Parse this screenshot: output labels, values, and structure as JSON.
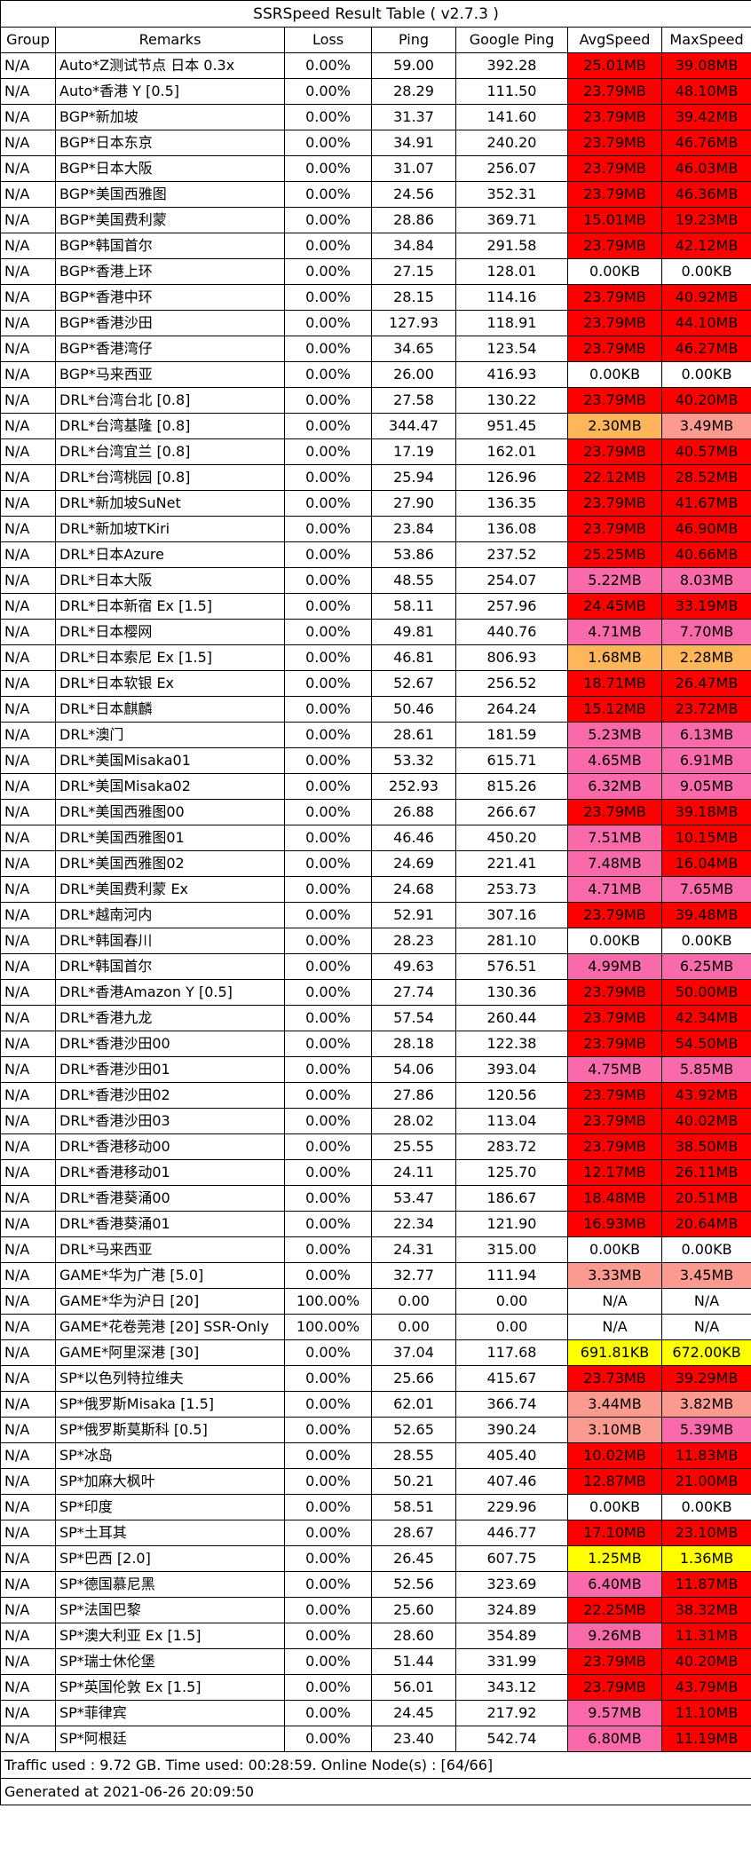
{
  "title": "SSRSpeed Result Table ( v2.7.3 )",
  "headers": [
    "Group",
    "Remarks",
    "Loss",
    "Ping",
    "Google Ping",
    "AvgSpeed",
    "MaxSpeed"
  ],
  "colors": {
    "red": "#ff0000",
    "pink": "#f86aa9",
    "salmon": "#fb9a8e",
    "orange": "#ffb65a",
    "yellow": "#ffff00",
    "white": "#ffffff"
  },
  "rows": [
    [
      "N/A",
      "Auto*Z测试节点 日本 0.3x",
      "0.00%",
      "59.00",
      "392.28",
      "25.01MB",
      "39.08MB",
      "red",
      "red"
    ],
    [
      "N/A",
      "Auto*香港 Y [0.5]",
      "0.00%",
      "28.29",
      "111.50",
      "23.79MB",
      "48.10MB",
      "red",
      "red"
    ],
    [
      "N/A",
      "BGP*新加坡",
      "0.00%",
      "31.37",
      "141.60",
      "23.79MB",
      "39.42MB",
      "red",
      "red"
    ],
    [
      "N/A",
      "BGP*日本东京",
      "0.00%",
      "34.91",
      "240.20",
      "23.79MB",
      "46.76MB",
      "red",
      "red"
    ],
    [
      "N/A",
      "BGP*日本大阪",
      "0.00%",
      "31.07",
      "256.07",
      "23.79MB",
      "46.03MB",
      "red",
      "red"
    ],
    [
      "N/A",
      "BGP*美国西雅图",
      "0.00%",
      "24.56",
      "352.31",
      "23.79MB",
      "46.36MB",
      "red",
      "red"
    ],
    [
      "N/A",
      "BGP*美国费利蒙",
      "0.00%",
      "28.86",
      "369.71",
      "15.01MB",
      "19.23MB",
      "red",
      "red"
    ],
    [
      "N/A",
      "BGP*韩国首尔",
      "0.00%",
      "34.84",
      "291.58",
      "23.79MB",
      "42.12MB",
      "red",
      "red"
    ],
    [
      "N/A",
      "BGP*香港上环",
      "0.00%",
      "27.15",
      "128.01",
      "0.00KB",
      "0.00KB",
      "white",
      "white"
    ],
    [
      "N/A",
      "BGP*香港中环",
      "0.00%",
      "28.15",
      "114.16",
      "23.79MB",
      "40.92MB",
      "red",
      "red"
    ],
    [
      "N/A",
      "BGP*香港沙田",
      "0.00%",
      "127.93",
      "118.91",
      "23.79MB",
      "44.10MB",
      "red",
      "red"
    ],
    [
      "N/A",
      "BGP*香港湾仔",
      "0.00%",
      "34.65",
      "123.54",
      "23.79MB",
      "46.27MB",
      "red",
      "red"
    ],
    [
      "N/A",
      "BGP*马来西亚",
      "0.00%",
      "26.00",
      "416.93",
      "0.00KB",
      "0.00KB",
      "white",
      "white"
    ],
    [
      "N/A",
      "DRL*台湾台北 [0.8]",
      "0.00%",
      "27.58",
      "130.22",
      "23.79MB",
      "40.20MB",
      "red",
      "red"
    ],
    [
      "N/A",
      "DRL*台湾基隆 [0.8]",
      "0.00%",
      "344.47",
      "951.45",
      "2.30MB",
      "3.49MB",
      "orange",
      "salmon"
    ],
    [
      "N/A",
      "DRL*台湾宜兰 [0.8]",
      "0.00%",
      "17.19",
      "162.01",
      "23.79MB",
      "40.57MB",
      "red",
      "red"
    ],
    [
      "N/A",
      "DRL*台湾桃园 [0.8]",
      "0.00%",
      "25.94",
      "126.96",
      "22.12MB",
      "28.52MB",
      "red",
      "red"
    ],
    [
      "N/A",
      "DRL*新加坡SuNet",
      "0.00%",
      "27.90",
      "136.35",
      "23.79MB",
      "41.67MB",
      "red",
      "red"
    ],
    [
      "N/A",
      "DRL*新加坡TKiri",
      "0.00%",
      "23.84",
      "136.08",
      "23.79MB",
      "46.90MB",
      "red",
      "red"
    ],
    [
      "N/A",
      "DRL*日本Azure",
      "0.00%",
      "53.86",
      "237.52",
      "25.25MB",
      "40.66MB",
      "red",
      "red"
    ],
    [
      "N/A",
      "DRL*日本大阪",
      "0.00%",
      "48.55",
      "254.07",
      "5.22MB",
      "8.03MB",
      "pink",
      "pink"
    ],
    [
      "N/A",
      "DRL*日本新宿 Ex [1.5]",
      "0.00%",
      "58.11",
      "257.96",
      "24.45MB",
      "33.19MB",
      "red",
      "red"
    ],
    [
      "N/A",
      "DRL*日本樱网",
      "0.00%",
      "49.81",
      "440.76",
      "4.71MB",
      "7.70MB",
      "pink",
      "pink"
    ],
    [
      "N/A",
      "DRL*日本索尼 Ex [1.5]",
      "0.00%",
      "46.81",
      "806.93",
      "1.68MB",
      "2.28MB",
      "orange",
      "orange"
    ],
    [
      "N/A",
      "DRL*日本软银 Ex",
      "0.00%",
      "52.67",
      "256.52",
      "18.71MB",
      "26.47MB",
      "red",
      "red"
    ],
    [
      "N/A",
      "DRL*日本麒麟",
      "0.00%",
      "50.46",
      "264.24",
      "15.12MB",
      "23.72MB",
      "red",
      "red"
    ],
    [
      "N/A",
      "DRL*澳门",
      "0.00%",
      "28.61",
      "181.59",
      "5.23MB",
      "6.13MB",
      "pink",
      "pink"
    ],
    [
      "N/A",
      "DRL*美国Misaka01",
      "0.00%",
      "53.32",
      "615.71",
      "4.65MB",
      "6.91MB",
      "pink",
      "pink"
    ],
    [
      "N/A",
      "DRL*美国Misaka02",
      "0.00%",
      "252.93",
      "815.26",
      "6.32MB",
      "9.05MB",
      "pink",
      "pink"
    ],
    [
      "N/A",
      "DRL*美国西雅图00",
      "0.00%",
      "26.88",
      "266.67",
      "23.79MB",
      "39.18MB",
      "red",
      "red"
    ],
    [
      "N/A",
      "DRL*美国西雅图01",
      "0.00%",
      "46.46",
      "450.20",
      "7.51MB",
      "10.15MB",
      "pink",
      "red"
    ],
    [
      "N/A",
      "DRL*美国西雅图02",
      "0.00%",
      "24.69",
      "221.41",
      "7.48MB",
      "16.04MB",
      "pink",
      "red"
    ],
    [
      "N/A",
      "DRL*美国费利蒙 Ex",
      "0.00%",
      "24.68",
      "253.73",
      "4.71MB",
      "7.65MB",
      "pink",
      "pink"
    ],
    [
      "N/A",
      "DRL*越南河内",
      "0.00%",
      "52.91",
      "307.16",
      "23.79MB",
      "39.48MB",
      "red",
      "red"
    ],
    [
      "N/A",
      "DRL*韩国春川",
      "0.00%",
      "28.23",
      "281.10",
      "0.00KB",
      "0.00KB",
      "white",
      "white"
    ],
    [
      "N/A",
      "DRL*韩国首尔",
      "0.00%",
      "49.63",
      "576.51",
      "4.99MB",
      "6.25MB",
      "pink",
      "pink"
    ],
    [
      "N/A",
      "DRL*香港Amazon Y [0.5]",
      "0.00%",
      "27.74",
      "130.36",
      "23.79MB",
      "50.00MB",
      "red",
      "red"
    ],
    [
      "N/A",
      "DRL*香港九龙",
      "0.00%",
      "57.54",
      "260.44",
      "23.79MB",
      "42.34MB",
      "red",
      "red"
    ],
    [
      "N/A",
      "DRL*香港沙田00",
      "0.00%",
      "28.18",
      "122.38",
      "23.79MB",
      "54.50MB",
      "red",
      "red"
    ],
    [
      "N/A",
      "DRL*香港沙田01",
      "0.00%",
      "54.06",
      "393.04",
      "4.75MB",
      "5.85MB",
      "pink",
      "pink"
    ],
    [
      "N/A",
      "DRL*香港沙田02",
      "0.00%",
      "27.86",
      "120.56",
      "23.79MB",
      "43.92MB",
      "red",
      "red"
    ],
    [
      "N/A",
      "DRL*香港沙田03",
      "0.00%",
      "28.02",
      "113.04",
      "23.79MB",
      "40.02MB",
      "red",
      "red"
    ],
    [
      "N/A",
      "DRL*香港移动00",
      "0.00%",
      "25.55",
      "283.72",
      "23.79MB",
      "38.50MB",
      "red",
      "red"
    ],
    [
      "N/A",
      "DRL*香港移动01",
      "0.00%",
      "24.11",
      "125.70",
      "12.17MB",
      "26.11MB",
      "red",
      "red"
    ],
    [
      "N/A",
      "DRL*香港葵涌00",
      "0.00%",
      "53.47",
      "186.67",
      "18.48MB",
      "20.51MB",
      "red",
      "red"
    ],
    [
      "N/A",
      "DRL*香港葵涌01",
      "0.00%",
      "22.34",
      "121.90",
      "16.93MB",
      "20.64MB",
      "red",
      "red"
    ],
    [
      "N/A",
      "DRL*马来西亚",
      "0.00%",
      "24.31",
      "315.00",
      "0.00KB",
      "0.00KB",
      "white",
      "white"
    ],
    [
      "N/A",
      "GAME*华为广港 [5.0]",
      "0.00%",
      "32.77",
      "111.94",
      "3.33MB",
      "3.45MB",
      "salmon",
      "salmon"
    ],
    [
      "N/A",
      "GAME*华为沪日 [20]",
      "100.00%",
      "0.00",
      "0.00",
      "N/A",
      "N/A",
      "white",
      "white"
    ],
    [
      "N/A",
      "GAME*花卷莞港 [20] SSR-Only",
      "100.00%",
      "0.00",
      "0.00",
      "N/A",
      "N/A",
      "white",
      "white"
    ],
    [
      "N/A",
      "GAME*阿里深港 [30]",
      "0.00%",
      "37.04",
      "117.68",
      "691.81KB",
      "672.00KB",
      "yellow",
      "yellow"
    ],
    [
      "N/A",
      "SP*以色列特拉维夫",
      "0.00%",
      "25.66",
      "415.67",
      "23.73MB",
      "39.29MB",
      "red",
      "red"
    ],
    [
      "N/A",
      "SP*俄罗斯Misaka [1.5]",
      "0.00%",
      "62.01",
      "366.74",
      "3.44MB",
      "3.82MB",
      "salmon",
      "salmon"
    ],
    [
      "N/A",
      "SP*俄罗斯莫斯科 [0.5]",
      "0.00%",
      "52.65",
      "390.24",
      "3.10MB",
      "5.39MB",
      "salmon",
      "pink"
    ],
    [
      "N/A",
      "SP*冰岛",
      "0.00%",
      "28.55",
      "405.40",
      "10.02MB",
      "11.83MB",
      "red",
      "red"
    ],
    [
      "N/A",
      "SP*加麻大枫叶",
      "0.00%",
      "50.21",
      "407.46",
      "12.87MB",
      "21.00MB",
      "red",
      "red"
    ],
    [
      "N/A",
      "SP*印度",
      "0.00%",
      "58.51",
      "229.96",
      "0.00KB",
      "0.00KB",
      "white",
      "white"
    ],
    [
      "N/A",
      "SP*土耳其",
      "0.00%",
      "28.67",
      "446.77",
      "17.10MB",
      "23.10MB",
      "red",
      "red"
    ],
    [
      "N/A",
      "SP*巴西 [2.0]",
      "0.00%",
      "26.45",
      "607.75",
      "1.25MB",
      "1.36MB",
      "yellow",
      "yellow"
    ],
    [
      "N/A",
      "SP*德国慕尼黑",
      "0.00%",
      "52.56",
      "323.69",
      "6.40MB",
      "11.87MB",
      "pink",
      "red"
    ],
    [
      "N/A",
      "SP*法国巴黎",
      "0.00%",
      "25.60",
      "324.89",
      "22.25MB",
      "38.32MB",
      "red",
      "red"
    ],
    [
      "N/A",
      "SP*澳大利亚 Ex [1.5]",
      "0.00%",
      "28.60",
      "354.89",
      "9.26MB",
      "11.31MB",
      "pink",
      "red"
    ],
    [
      "N/A",
      "SP*瑞士休伦堡",
      "0.00%",
      "51.44",
      "331.99",
      "23.79MB",
      "40.20MB",
      "red",
      "red"
    ],
    [
      "N/A",
      "SP*英国伦敦 Ex [1.5]",
      "0.00%",
      "56.01",
      "343.12",
      "23.79MB",
      "43.79MB",
      "red",
      "red"
    ],
    [
      "N/A",
      "SP*菲律宾",
      "0.00%",
      "24.45",
      "217.92",
      "9.57MB",
      "11.10MB",
      "pink",
      "red"
    ],
    [
      "N/A",
      "SP*阿根廷",
      "0.00%",
      "23.40",
      "542.74",
      "6.80MB",
      "11.19MB",
      "pink",
      "red"
    ]
  ],
  "footer": {
    "traffic": "Traffic used : 9.72 GB. Time used: 00:28:59. Online Node(s) : [64/66]",
    "generated": "Generated at 2021-06-26 20:09:50"
  }
}
